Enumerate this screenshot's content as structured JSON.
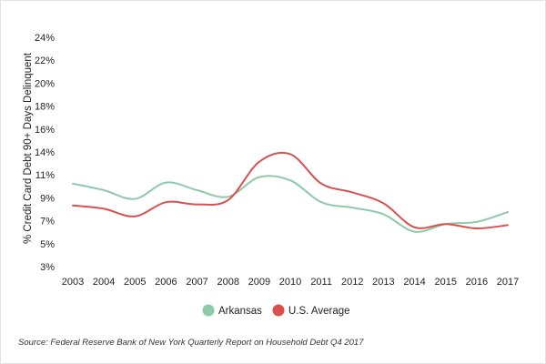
{
  "chart_data": {
    "type": "line",
    "xlabel": "",
    "ylabel": "% Credit Card Debt 90+ Days Delinquent",
    "x": [
      "2003",
      "2004",
      "2005",
      "2006",
      "2007",
      "2008",
      "2009",
      "2010",
      "2011",
      "2012",
      "2013",
      "2014",
      "2015",
      "2016",
      "2017"
    ],
    "y_ticks": [
      "3%",
      "5%",
      "7%",
      "9%",
      "11%",
      "14%",
      "16%",
      "18%",
      "20%",
      "22%",
      "24%"
    ],
    "ylim": [
      3,
      24
    ],
    "grid": false,
    "legend_position": "bottom",
    "series": [
      {
        "name": "Arkansas",
        "color": "#8fc9a9",
        "values": [
          10.6,
          10.0,
          9.2,
          10.7,
          10.0,
          9.4,
          11.2,
          10.9,
          8.9,
          8.4,
          7.8,
          6.2,
          6.9,
          7.1,
          8.0
        ]
      },
      {
        "name": "U.S. Average",
        "color": "#d9504f",
        "values": [
          8.6,
          8.3,
          7.6,
          8.9,
          8.7,
          9.1,
          12.6,
          13.3,
          10.6,
          9.8,
          8.8,
          6.6,
          6.9,
          6.5,
          6.8
        ]
      }
    ]
  },
  "source": "Source: Federal Reserve Bank of New York Quarterly Report on Household Debt Q4 2017"
}
